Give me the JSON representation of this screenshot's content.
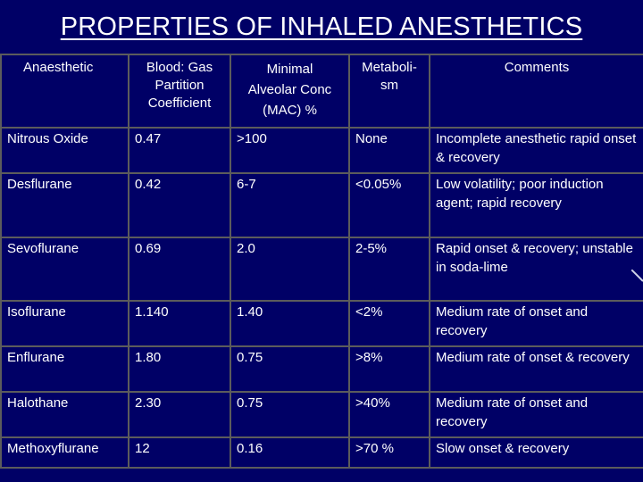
{
  "title": "PROPERTIES OF INHALED ANESTHETICS",
  "headers": {
    "anaesthetic": "Anaesthetic",
    "partition": [
      "Blood: Gas",
      "Partition",
      "Coefficient"
    ],
    "mac": [
      "Minimal",
      "Alveolar Conc",
      "(MAC) %"
    ],
    "metabolism": [
      "Metaboli-",
      "sm"
    ],
    "comments": "Comments"
  },
  "rows": [
    {
      "name": "Nitrous Oxide",
      "partition": "0.47",
      "mac": ">100",
      "metabolism": "None",
      "comments": "Incomplete anesthetic rapid onset  & recovery"
    },
    {
      "name": "Desflurane",
      "partition": "0.42",
      "mac": "6-7",
      "metabolism": "<0.05%",
      "comments": "Low volatility; poor induction agent; rapid recovery"
    },
    {
      "name": "Sevoflurane",
      "partition": "0.69",
      "mac": "2.0",
      "metabolism": "2-5%",
      "comments": "Rapid onset & recovery; unstable in soda-lime"
    },
    {
      "name": "Isoflurane",
      "partition": "1.140",
      "mac": "1.40",
      "metabolism": "<2%",
      "comments": "Medium rate of onset and recovery"
    },
    {
      "name": "Enflurane",
      "partition": "1.80",
      "mac": "0.75",
      "metabolism": ">8%",
      "comments": "Medium rate of onset & recovery"
    },
    {
      "name": "Halothane",
      "partition": "2.30",
      "mac": "0.75",
      "metabolism": ">40%",
      "comments": "Medium rate of onset and recovery"
    },
    {
      "name": "Methoxyflurane",
      "partition": "12",
      "mac": "0.16",
      "metabolism": ">70 %",
      "comments": "Slow onset & recovery"
    }
  ]
}
